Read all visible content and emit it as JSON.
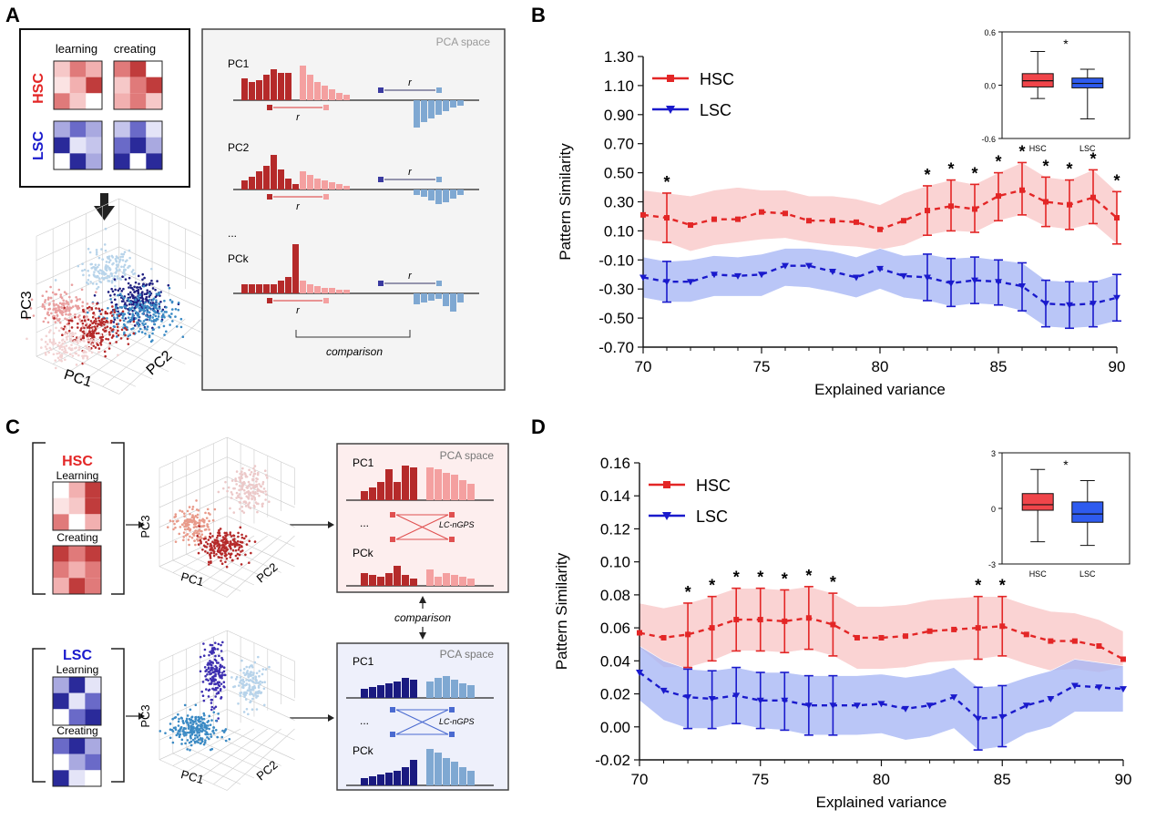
{
  "panels": {
    "A": {
      "letter": "A",
      "learning": "learning",
      "creating": "creating",
      "hsc": "HSC",
      "lsc": "LSC",
      "pca_space": "PCA space",
      "pc_labels": [
        "PC1",
        "PC2",
        "...",
        "PCk"
      ],
      "r": "r",
      "comparison": "comparison",
      "axis_pc1": "PC1",
      "axis_pc2": "PC2",
      "axis_pc3": "PC3"
    },
    "C": {
      "letter": "C",
      "hsc": "HSC",
      "lsc": "LSC",
      "learning": "Learning",
      "creating": "Creating",
      "pca_space": "PCA space",
      "pc1": "PC1",
      "dots": "...",
      "pck": "PCk",
      "lc_ngps": "LC-nGPS",
      "comparison": "comparison",
      "axis_pc1": "PC1",
      "axis_pc2": "PC2",
      "axis_pc3": "PC3"
    },
    "B": {
      "letter": "B"
    },
    "D": {
      "letter": "D"
    }
  },
  "colors": {
    "hsc": "#e32626",
    "lsc": "#1a1acc",
    "hsc_band": "#f9c8c8",
    "lsc_band": "#a9b8f5",
    "dark_red": "#b52a2a",
    "light_red": "#f4a0a0",
    "dark_blue": "#1a1a80",
    "light_blue": "#7fa8d2"
  },
  "chart_data": [
    {
      "panel": "B",
      "type": "line",
      "xlabel": "Explained variance",
      "ylabel": "Pattern Similarity",
      "xlim": [
        70,
        90
      ],
      "ylim": [
        -0.7,
        1.3
      ],
      "x_ticks": [
        70,
        75,
        80,
        85,
        90
      ],
      "y_ticks": [
        "1.30",
        "1.10",
        "0.90",
        "0.70",
        "0.50",
        "0.30",
        "0.10",
        "-0.10",
        "-0.30",
        "-0.50",
        "-0.70"
      ],
      "legend": "top-left",
      "grid": false,
      "x": [
        70,
        71,
        72,
        73,
        74,
        75,
        76,
        77,
        78,
        79,
        80,
        81,
        82,
        83,
        84,
        85,
        86,
        87,
        88,
        89,
        90
      ],
      "series": [
        {
          "name": "HSC",
          "values": [
            0.21,
            0.19,
            0.14,
            0.18,
            0.18,
            0.23,
            0.22,
            0.17,
            0.17,
            0.16,
            0.11,
            0.17,
            0.24,
            0.27,
            0.25,
            0.34,
            0.38,
            0.3,
            0.28,
            0.33,
            0.19
          ],
          "band_upper": [
            0.38,
            0.36,
            0.34,
            0.38,
            0.4,
            0.38,
            0.38,
            0.34,
            0.34,
            0.32,
            0.28,
            0.36,
            0.41,
            0.45,
            0.42,
            0.5,
            0.57,
            0.47,
            0.45,
            0.52,
            0.37
          ],
          "band_lower": [
            0.04,
            0.02,
            -0.04,
            0.0,
            0.02,
            0.04,
            0.05,
            0.02,
            0.0,
            -0.01,
            -0.03,
            0.0,
            0.07,
            0.1,
            0.09,
            0.17,
            0.21,
            0.13,
            0.11,
            0.15,
            0.01
          ]
        },
        {
          "name": "LSC",
          "values": [
            -0.22,
            -0.25,
            -0.25,
            -0.2,
            -0.21,
            -0.2,
            -0.14,
            -0.14,
            -0.18,
            -0.22,
            -0.16,
            -0.21,
            -0.22,
            -0.26,
            -0.24,
            -0.25,
            -0.28,
            -0.4,
            -0.41,
            -0.4,
            -0.36
          ],
          "band_upper": [
            -0.08,
            -0.11,
            -0.1,
            -0.07,
            -0.08,
            -0.06,
            -0.02,
            -0.02,
            -0.04,
            -0.08,
            -0.02,
            -0.07,
            -0.06,
            -0.09,
            -0.08,
            -0.1,
            -0.12,
            -0.24,
            -0.25,
            -0.25,
            -0.2
          ],
          "band_lower": [
            -0.36,
            -0.39,
            -0.39,
            -0.35,
            -0.35,
            -0.35,
            -0.28,
            -0.29,
            -0.32,
            -0.36,
            -0.3,
            -0.36,
            -0.38,
            -0.42,
            -0.4,
            -0.41,
            -0.45,
            -0.56,
            -0.57,
            -0.56,
            -0.52
          ]
        }
      ],
      "errorbar_x": [
        71,
        82,
        83,
        84,
        85,
        86,
        87,
        88,
        89,
        90
      ],
      "significance": {
        "label": "*",
        "x": [
          71,
          82,
          83,
          84,
          85,
          86,
          87,
          88,
          89,
          90
        ]
      },
      "inset": {
        "type": "box",
        "ylim": [
          -0.6,
          0.6
        ],
        "y_ticks": [
          "0.6",
          "0.0",
          "-0.6"
        ],
        "categories": [
          "HSC",
          "LSC"
        ],
        "boxes": [
          {
            "min": -0.15,
            "q1": -0.02,
            "median": 0.05,
            "q3": 0.13,
            "max": 0.38
          },
          {
            "min": -0.38,
            "q1": -0.03,
            "median": 0.02,
            "q3": 0.08,
            "max": 0.18
          }
        ],
        "significance": "*"
      }
    },
    {
      "panel": "D",
      "type": "line",
      "xlabel": "Explained variance",
      "ylabel": "Pattern Similarity",
      "xlim": [
        70,
        90
      ],
      "ylim": [
        -0.02,
        0.16
      ],
      "x_ticks": [
        70,
        75,
        80,
        85,
        90
      ],
      "y_ticks": [
        "0.16",
        "0.14",
        "0.12",
        "0.10",
        "0.08",
        "0.06",
        "0.04",
        "0.02",
        "0.00",
        "-0.02"
      ],
      "legend": "top-left",
      "grid": false,
      "x": [
        70,
        71,
        72,
        73,
        74,
        75,
        76,
        77,
        78,
        79,
        80,
        81,
        82,
        83,
        84,
        85,
        86,
        87,
        88,
        89,
        90
      ],
      "series": [
        {
          "name": "HSC",
          "values": [
            0.057,
            0.054,
            0.056,
            0.06,
            0.065,
            0.065,
            0.064,
            0.066,
            0.062,
            0.054,
            0.054,
            0.055,
            0.058,
            0.059,
            0.06,
            0.061,
            0.056,
            0.052,
            0.052,
            0.049,
            0.041
          ],
          "band_upper": [
            0.075,
            0.072,
            0.075,
            0.079,
            0.084,
            0.084,
            0.083,
            0.085,
            0.081,
            0.073,
            0.073,
            0.074,
            0.077,
            0.078,
            0.079,
            0.079,
            0.074,
            0.07,
            0.069,
            0.065,
            0.058
          ],
          "band_lower": [
            0.048,
            0.036,
            0.036,
            0.04,
            0.046,
            0.046,
            0.045,
            0.047,
            0.043,
            0.035,
            0.035,
            0.036,
            0.039,
            0.04,
            0.041,
            0.043,
            0.038,
            0.034,
            0.035,
            0.033,
            0.036
          ]
        },
        {
          "name": "LSC",
          "values": [
            0.033,
            0.022,
            0.018,
            0.017,
            0.019,
            0.016,
            0.016,
            0.013,
            0.013,
            0.013,
            0.014,
            0.011,
            0.013,
            0.018,
            0.005,
            0.006,
            0.013,
            0.017,
            0.025,
            0.024,
            0.023
          ],
          "band_upper": [
            0.049,
            0.04,
            0.035,
            0.034,
            0.036,
            0.033,
            0.033,
            0.031,
            0.031,
            0.031,
            0.032,
            0.03,
            0.032,
            0.036,
            0.024,
            0.025,
            0.03,
            0.034,
            0.041,
            0.039,
            0.037
          ],
          "band_lower": [
            0.016,
            0.004,
            -0.001,
            -0.001,
            0.002,
            -0.001,
            -0.002,
            -0.005,
            -0.005,
            -0.005,
            -0.004,
            -0.008,
            -0.006,
            -0.001,
            -0.014,
            -0.012,
            -0.004,
            0.0,
            0.009,
            0.009,
            0.009
          ]
        }
      ],
      "errorbar_x": [
        72,
        73,
        74,
        75,
        76,
        77,
        78,
        84,
        85
      ],
      "significance": {
        "label": "*",
        "x": [
          72,
          73,
          74,
          75,
          76,
          77,
          78,
          84,
          85
        ]
      },
      "inset": {
        "type": "box",
        "ylim": [
          -3,
          3
        ],
        "y_ticks": [
          "3",
          "0",
          "-3"
        ],
        "categories": [
          "HSC",
          "LSC"
        ],
        "boxes": [
          {
            "min": -1.8,
            "q1": -0.1,
            "median": 0.2,
            "q3": 0.8,
            "max": 2.1
          },
          {
            "min": -2.0,
            "q1": -0.75,
            "median": -0.3,
            "q3": 0.35,
            "max": 1.5
          }
        ],
        "significance": "*"
      }
    }
  ]
}
